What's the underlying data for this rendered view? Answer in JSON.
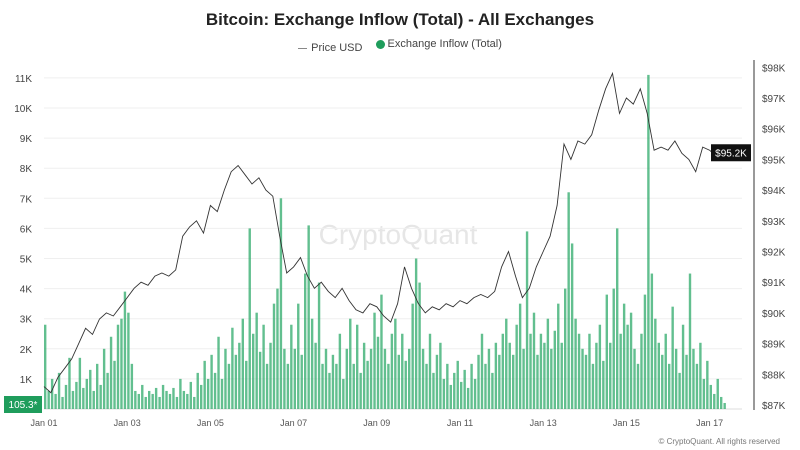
{
  "chart_data": {
    "type": "bar+line",
    "title": "Bitcoin: Exchange Inflow (Total) - All Exchanges",
    "legend_placement": "top",
    "grid": true,
    "x_ticks": [
      "Jan 01",
      "Jan 03",
      "Jan 05",
      "Jan 07",
      "Jan 09",
      "Jan 11",
      "Jan 13",
      "Jan 15",
      "Jan 17"
    ],
    "x_range_days": [
      1,
      17.6
    ],
    "left_axis": {
      "ticks": [
        "1K",
        "2K",
        "3K",
        "4K",
        "5K",
        "6K",
        "7K",
        "8K",
        "9K",
        "10K",
        "11K"
      ],
      "range": [
        0,
        11.4
      ],
      "unit": "K BTC"
    },
    "right_axis": {
      "ticks": [
        "$87K",
        "$88K",
        "$89K",
        "$90K",
        "$91K",
        "$92K",
        "$93K",
        "$94K",
        "$95K",
        "$96K",
        "$97K",
        "$98K"
      ],
      "range": [
        87,
        98.2
      ],
      "unit": "K USD"
    },
    "series": [
      {
        "name": "Price USD",
        "type": "line",
        "color": "#333333",
        "interval_hours": 4,
        "start": "Jan 01 00:00",
        "values": [
          87.6,
          87.4,
          87.9,
          88.2,
          88.5,
          89.0,
          89.5,
          89.3,
          89.8,
          90.0,
          89.9,
          90.2,
          90.5,
          90.8,
          91.0,
          90.9,
          91.2,
          91.3,
          91.2,
          91.4,
          92.5,
          92.8,
          93.0,
          92.6,
          93.5,
          93.3,
          94.0,
          94.6,
          94.8,
          94.5,
          94.2,
          94.4,
          94.0,
          93.8,
          92.5,
          91.3,
          91.5,
          91.8,
          91.2,
          90.8,
          91.0,
          90.7,
          90.5,
          90.8,
          90.4,
          90.1,
          90.0,
          90.3,
          90.2,
          89.9,
          89.7,
          90.3,
          91.5,
          90.8,
          90.3,
          90.0,
          90.2,
          90.1,
          90.3,
          90.2,
          90.4,
          90.3,
          90.5,
          90.6,
          90.5,
          90.7,
          91.5,
          92.0,
          91.2,
          90.5,
          90.8,
          91.5,
          92.0,
          92.5,
          93.5,
          95.5,
          95.0,
          95.6,
          95.5,
          95.8,
          96.6,
          97.3,
          97.8,
          96.5,
          97.0,
          96.8,
          97.3,
          96.5,
          95.3,
          95.4,
          95.3,
          95.6,
          95.2,
          95.0,
          94.6,
          95.4,
          95.3,
          95.1,
          95.2
        ]
      },
      {
        "name": "Exchange Inflow (Total)",
        "type": "bar",
        "color": "#2eaa6a",
        "interval_hours": 2,
        "start": "Jan 01 00:00",
        "values": [
          2.8,
          0.6,
          1.0,
          0.5,
          1.2,
          0.4,
          0.8,
          1.7,
          0.6,
          0.9,
          1.7,
          0.7,
          1.0,
          1.3,
          0.6,
          1.5,
          0.8,
          2.0,
          1.2,
          2.4,
          1.6,
          2.8,
          3.0,
          3.9,
          3.2,
          1.5,
          0.6,
          0.5,
          0.8,
          0.4,
          0.6,
          0.5,
          0.7,
          0.4,
          0.8,
          0.6,
          0.5,
          0.7,
          0.4,
          1.0,
          0.6,
          0.5,
          0.9,
          0.4,
          1.2,
          0.8,
          1.6,
          1.0,
          1.8,
          1.2,
          2.4,
          1.0,
          2.0,
          1.5,
          2.7,
          1.8,
          2.2,
          3.0,
          1.6,
          6.0,
          2.5,
          3.2,
          1.9,
          2.8,
          1.5,
          2.2,
          3.5,
          4.0,
          7.0,
          2.0,
          1.5,
          2.8,
          2.0,
          3.5,
          1.8,
          4.5,
          6.1,
          3.0,
          2.2,
          4.2,
          1.5,
          2.0,
          1.2,
          1.8,
          1.5,
          2.5,
          1.0,
          2.0,
          3.0,
          1.5,
          2.8,
          1.2,
          2.2,
          1.6,
          2.0,
          3.2,
          2.4,
          3.8,
          2.0,
          1.5,
          2.5,
          3.0,
          1.8,
          2.5,
          1.6,
          2.0,
          3.5,
          5.0,
          4.2,
          2.0,
          1.5,
          2.5,
          1.2,
          1.8,
          2.2,
          1.0,
          1.5,
          0.8,
          1.2,
          1.6,
          0.9,
          1.3,
          0.7,
          1.5,
          1.0,
          1.8,
          2.5,
          1.5,
          2.0,
          1.2,
          2.2,
          1.8,
          2.5,
          3.0,
          2.2,
          1.8,
          2.8,
          3.5,
          2.0,
          5.9,
          2.5,
          3.2,
          1.8,
          2.5,
          2.2,
          3.0,
          2.0,
          2.6,
          3.5,
          2.2,
          4.0,
          7.2,
          5.5,
          3.0,
          2.5,
          2.0,
          1.8,
          2.5,
          1.5,
          2.2,
          2.8,
          1.6,
          3.8,
          2.2,
          4.0,
          6.0,
          2.5,
          3.5,
          2.8,
          3.2,
          2.0,
          1.5,
          2.5,
          3.8,
          11.1,
          4.5,
          3.0,
          2.2,
          1.8,
          2.5,
          1.5,
          3.4,
          2.0,
          1.2,
          2.8,
          1.8,
          4.5,
          2.0,
          1.5,
          2.2,
          1.0,
          1.6,
          0.8,
          0.5,
          1.0,
          0.4,
          0.2
        ]
      }
    ],
    "last_value_badges": {
      "inflow": "105.3*",
      "price": "$95.2K"
    },
    "watermark": "CryptoQuant"
  },
  "legend": {
    "price": "Price USD",
    "inflow": "Exchange Inflow (Total)"
  },
  "footer": "© CryptoQuant. All rights reserved"
}
